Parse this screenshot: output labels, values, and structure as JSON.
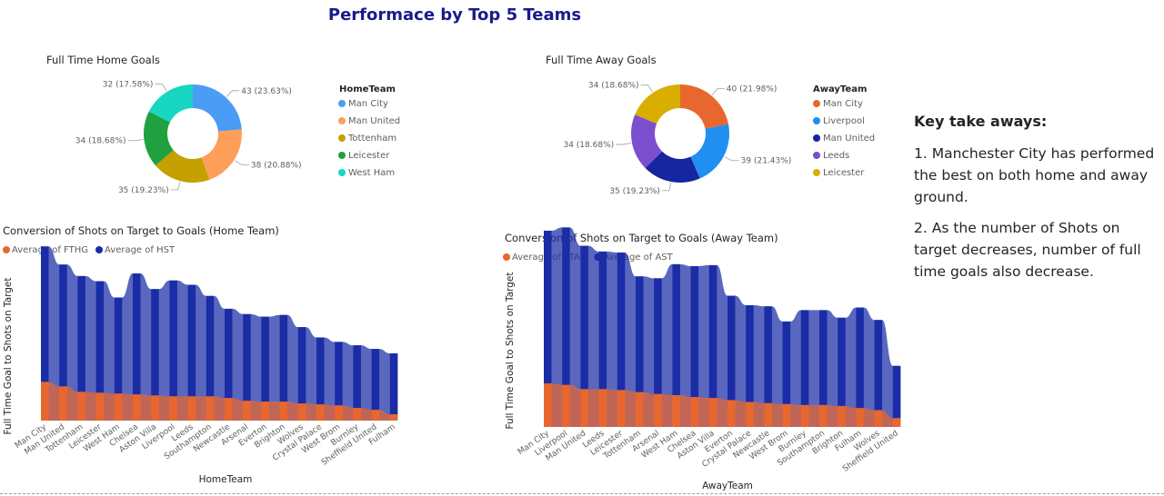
{
  "page": {
    "title": "Performace by Top 5 Teams"
  },
  "takeaways": {
    "heading": "Key take aways:",
    "points": [
      "1. Manchester City has performed the best on both home and away ground.",
      "2. As the number of Shots on target decreases, number of full time goals also decrease."
    ]
  },
  "chart_data": [
    {
      "type": "pie",
      "variant": "donut",
      "title": "Full Time Home Goals",
      "legend_title": "HomeTeam",
      "legend_position": "right",
      "categories": [
        "Man City",
        "Man United",
        "Tottenham",
        "Leicester",
        "West Ham"
      ],
      "values": [
        43,
        38,
        35,
        34,
        32
      ],
      "labels": [
        "43 (23.63%)",
        "38 (20.88%)",
        "35 (19.23%)",
        "34 (18.68%)",
        "32 (17.58%)"
      ],
      "colors": [
        "#4a9cf5",
        "#fd9e5a",
        "#c4a000",
        "#1fa13f",
        "#17d6c2"
      ]
    },
    {
      "type": "pie",
      "variant": "donut",
      "title": "Full Time Away Goals",
      "legend_title": "AwayTeam",
      "legend_position": "right",
      "categories": [
        "Man City",
        "Liverpool",
        "Man United",
        "Leeds",
        "Leicester"
      ],
      "values": [
        40,
        39,
        35,
        34,
        34
      ],
      "labels": [
        "40 (21.98%)",
        "39 (21.43%)",
        "35 (19.23%)",
        "34 (18.68%)",
        "34 (18.68%)"
      ],
      "colors": [
        "#e8672f",
        "#1f8ff2",
        "#15269e",
        "#7c4fcf",
        "#d9ae00"
      ]
    },
    {
      "type": "area",
      "title": "Conversion of Shots on Target to Goals (Home Team)",
      "xlabel": "HomeTeam",
      "ylabel": "Full Time Goal to Shots on Target",
      "legend_position": "top-left",
      "ylim": [
        0,
        8
      ],
      "categories": [
        "Man City",
        "Man United",
        "Tottenham",
        "Leicester",
        "West Ham",
        "Chelsea",
        "Aston Villa",
        "Liverpool",
        "Leeds",
        "Southampton",
        "Newcastle",
        "Arsenal",
        "Everton",
        "Brighton",
        "Wolves",
        "Crystal Palace",
        "West Brom",
        "Burnley",
        "Sheffield United",
        "Fulham"
      ],
      "series": [
        {
          "name": "Average of FTHG",
          "color": "#e8672f",
          "values": [
            2.26,
            2.0,
            1.68,
            1.63,
            1.58,
            1.53,
            1.47,
            1.42,
            1.42,
            1.42,
            1.32,
            1.16,
            1.11,
            1.11,
            1.0,
            0.95,
            0.89,
            0.74,
            0.63,
            0.37
          ]
        },
        {
          "name": "Average of HST",
          "color": "#1a2ca6",
          "values": [
            7.9,
            7.1,
            6.75,
            6.5,
            5.6,
            7.05,
            6.2,
            6.75,
            6.5,
            5.85,
            5.2,
            5.05,
            4.95,
            5.05,
            4.45,
            3.9,
            3.7,
            3.65,
            3.55,
            3.55
          ]
        }
      ]
    },
    {
      "type": "area",
      "title": "Conversion of Shots on Target to Goals (Away Team)",
      "xlabel": "AwayTeam",
      "ylabel": "Full Time Goal to Shots on Target",
      "legend_position": "top-left",
      "ylim": [
        0,
        8
      ],
      "categories": [
        "Man City",
        "Liverpool",
        "Man United",
        "Leeds",
        "Leicester",
        "Tottenham",
        "Arsenal",
        "West Ham",
        "Chelsea",
        "Aston Villa",
        "Everton",
        "Crystal Palace",
        "Newcastle",
        "West Brom",
        "Burnley",
        "Southampton",
        "Brighton",
        "Fulham",
        "Wolves",
        "Sheffield United"
      ],
      "series": [
        {
          "name": "Average of FTAG",
          "color": "#e8672f",
          "values": [
            2.3,
            2.22,
            2.0,
            2.0,
            1.95,
            1.84,
            1.74,
            1.68,
            1.58,
            1.53,
            1.42,
            1.32,
            1.26,
            1.21,
            1.16,
            1.16,
            1.11,
            1.0,
            0.89,
            0.47
          ]
        },
        {
          "name": "Average of AST",
          "color": "#1a2ca6",
          "values": [
            8.05,
            8.3,
            7.55,
            7.25,
            7.25,
            6.1,
            6.1,
            6.9,
            6.9,
            7.0,
            5.5,
            5.1,
            5.1,
            4.35,
            5.0,
            5.0,
            4.65,
            5.3,
            4.75,
            2.75
          ]
        }
      ]
    }
  ]
}
